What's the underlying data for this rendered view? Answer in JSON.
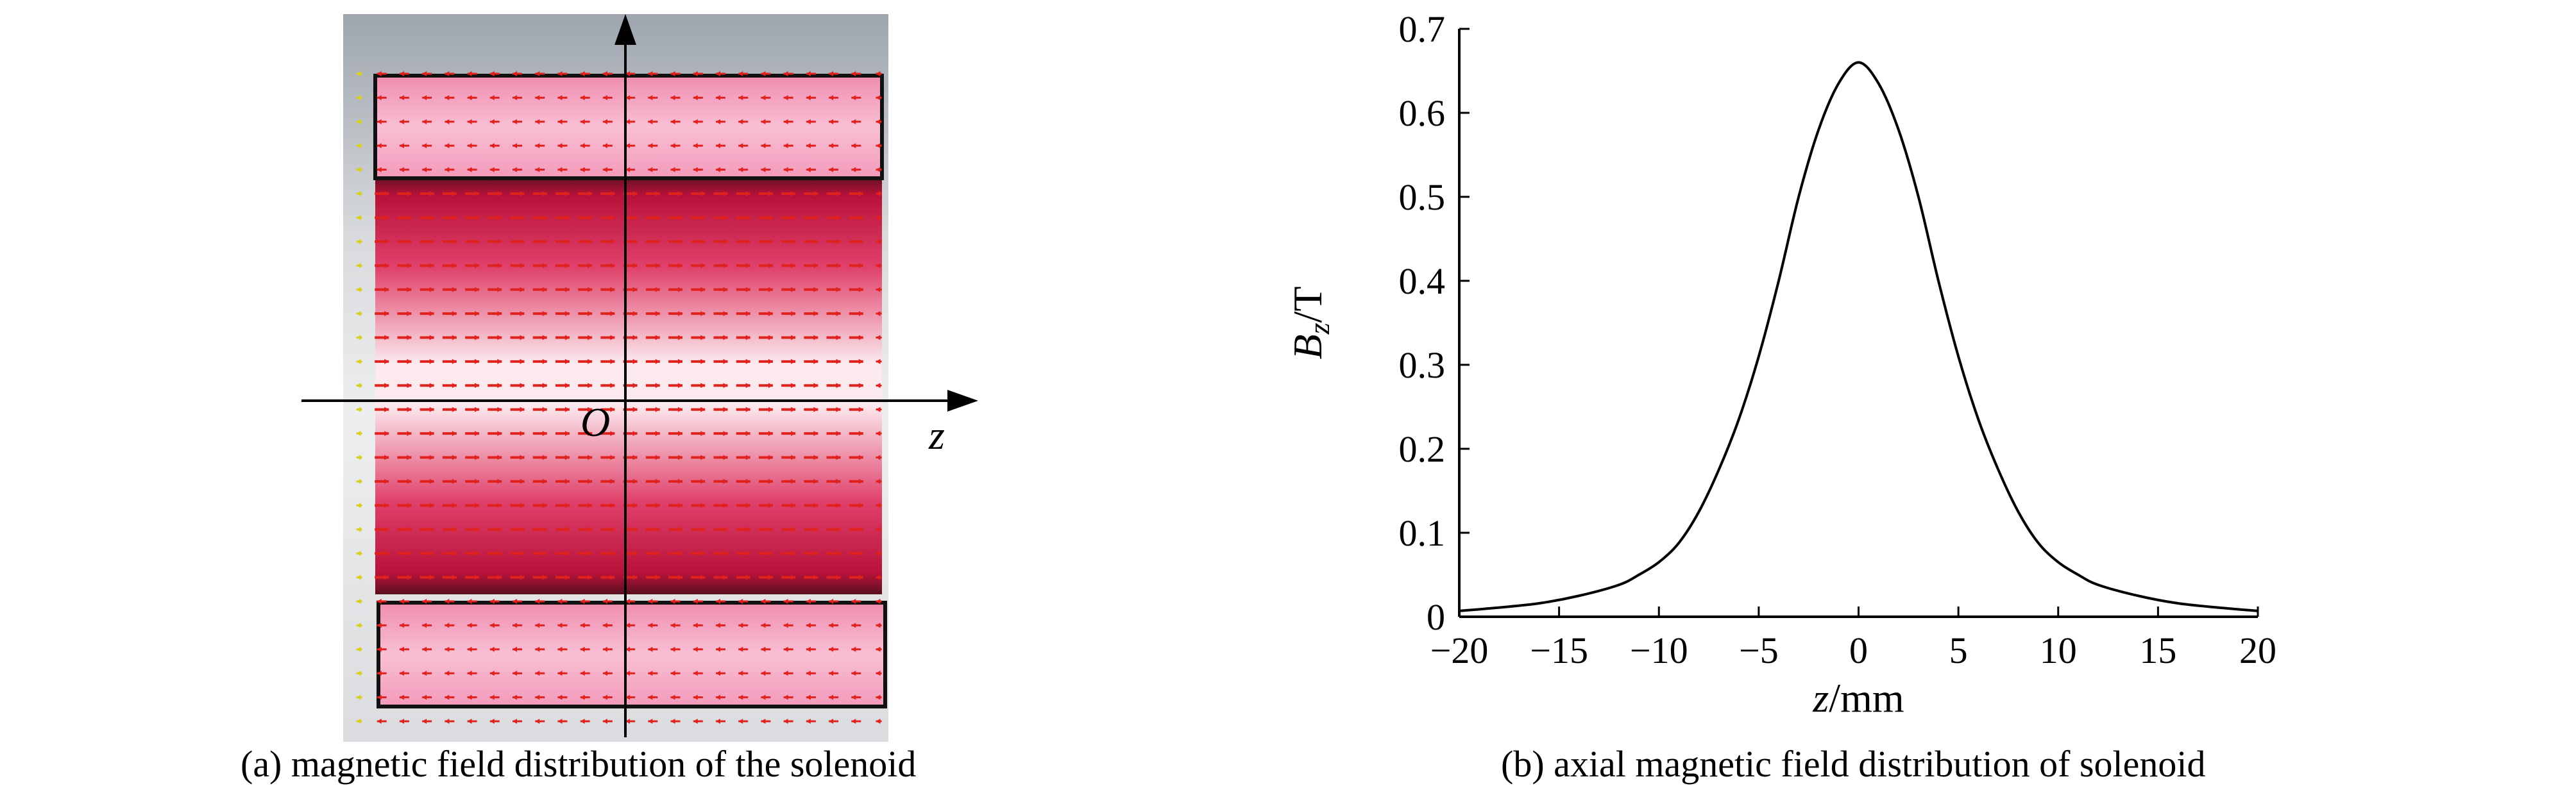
{
  "panel_a": {
    "caption": "(a) magnetic field distribution of the solenoid",
    "axis_label_z": "z",
    "origin_label": "O",
    "colors": {
      "background": "#c9ccd1",
      "coil": "#f4a6c3",
      "core_dark": "#b8123a",
      "core_light": "#fbe9ee",
      "arrow": "#e0221e",
      "outer_arrow": "#d8d020"
    }
  },
  "panel_b": {
    "caption": "(b) axial magnetic field distribution of solenoid"
  },
  "chart_data": [
    {
      "type": "line",
      "title": "",
      "xlabel": "z/mm",
      "ylabel": "Bz/T",
      "ylabel_main": "B",
      "ylabel_sub": "z",
      "ylabel_unit": "/T",
      "xlabel_var": "z",
      "xlabel_unit": "/mm",
      "xlim": [
        -20,
        20
      ],
      "ylim": [
        0,
        0.7
      ],
      "xticks": [
        -20,
        -15,
        -10,
        -5,
        0,
        5,
        10,
        15,
        20
      ],
      "xtick_labels": [
        "−20",
        "−15",
        "−10",
        "−5",
        "0",
        "5",
        "10",
        "15",
        "20"
      ],
      "yticks": [
        0,
        0.1,
        0.2,
        0.3,
        0.4,
        0.5,
        0.6,
        0.7
      ],
      "ytick_labels": [
        "0",
        "0.1",
        "0.2",
        "0.3",
        "0.4",
        "0.5",
        "0.6",
        "0.7"
      ],
      "grid": false,
      "series": [
        {
          "x": [
            -20,
            -18,
            -16,
            -14,
            -12,
            -11,
            -10,
            -9,
            -8,
            -7,
            -6,
            -5,
            -4,
            -3,
            -2,
            -1,
            0,
            1,
            2,
            3,
            4,
            5,
            6,
            7,
            8,
            9,
            10,
            11,
            12,
            14,
            16,
            18,
            20
          ],
          "y": [
            0.007,
            0.011,
            0.016,
            0.025,
            0.038,
            0.05,
            0.065,
            0.088,
            0.125,
            0.175,
            0.235,
            0.31,
            0.4,
            0.5,
            0.58,
            0.635,
            0.66,
            0.635,
            0.58,
            0.5,
            0.4,
            0.31,
            0.235,
            0.175,
            0.125,
            0.088,
            0.065,
            0.05,
            0.038,
            0.025,
            0.016,
            0.011,
            0.007
          ]
        }
      ]
    }
  ]
}
